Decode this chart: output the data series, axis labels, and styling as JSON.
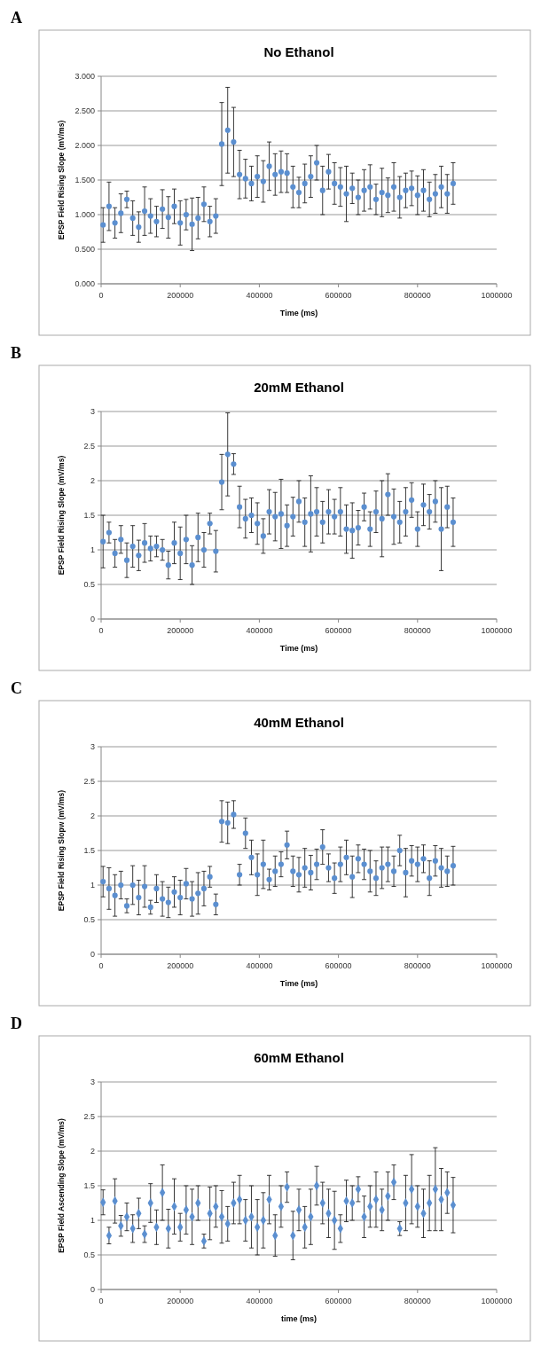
{
  "chart_data": [
    {
      "type": "scatter",
      "title": "No Ethanol",
      "xlabel": "Time (ms)",
      "ylabel": "EPSP Field Rising Slope (mV/ms)",
      "annotations": [
        "A"
      ],
      "color": "#5b8fd0",
      "marker": "circle",
      "grid": "y",
      "xlim": [
        0,
        1000000
      ],
      "xticks": [
        0,
        200000,
        400000,
        600000,
        800000,
        1000000
      ],
      "ylim": [
        0,
        3
      ],
      "yticks": [
        {
          "value": 0,
          "label": "0.000"
        },
        {
          "value": 0.5,
          "label": "0.500"
        },
        {
          "value": 1,
          "label": "1.000"
        },
        {
          "value": 1.5,
          "label": "1.500"
        },
        {
          "value": 2,
          "label": "2.000"
        },
        {
          "value": 2.5,
          "label": "2.500"
        },
        {
          "value": 3,
          "label": "3.000"
        }
      ],
      "x": [
        5000,
        20000,
        35000,
        50000,
        65000,
        80000,
        95000,
        110000,
        125000,
        140000,
        155000,
        170000,
        185000,
        200000,
        215000,
        230000,
        245000,
        260000,
        275000,
        290000,
        305000,
        320000,
        335000,
        350000,
        365000,
        380000,
        395000,
        410000,
        425000,
        440000,
        455000,
        470000,
        485000,
        500000,
        515000,
        530000,
        545000,
        560000,
        575000,
        590000,
        605000,
        620000,
        635000,
        650000,
        665000,
        680000,
        695000,
        710000,
        725000,
        740000,
        755000,
        770000,
        785000,
        800000,
        815000,
        830000,
        845000,
        860000,
        875000,
        890000
      ],
      "values": [
        0.85,
        1.12,
        0.88,
        1.02,
        1.22,
        0.95,
        0.82,
        1.05,
        0.98,
        0.9,
        1.08,
        0.96,
        1.12,
        0.88,
        1.0,
        0.86,
        0.95,
        1.15,
        0.9,
        0.98,
        2.02,
        2.22,
        2.05,
        1.58,
        1.52,
        1.45,
        1.55,
        1.48,
        1.7,
        1.58,
        1.62,
        1.6,
        1.4,
        1.32,
        1.45,
        1.55,
        1.75,
        1.35,
        1.62,
        1.45,
        1.4,
        1.3,
        1.38,
        1.25,
        1.35,
        1.4,
        1.22,
        1.32,
        1.28,
        1.4,
        1.25,
        1.35,
        1.38,
        1.28,
        1.35,
        1.22,
        1.3,
        1.4,
        1.3,
        1.45
      ],
      "errors": [
        0.25,
        0.35,
        0.22,
        0.28,
        0.12,
        0.25,
        0.22,
        0.35,
        0.25,
        0.22,
        0.28,
        0.3,
        0.25,
        0.32,
        0.22,
        0.38,
        0.3,
        0.25,
        0.22,
        0.25,
        0.6,
        0.62,
        0.5,
        0.35,
        0.28,
        0.25,
        0.3,
        0.3,
        0.35,
        0.3,
        0.3,
        0.28,
        0.3,
        0.22,
        0.28,
        0.3,
        0.25,
        0.35,
        0.25,
        0.3,
        0.28,
        0.4,
        0.22,
        0.25,
        0.3,
        0.32,
        0.22,
        0.35,
        0.25,
        0.35,
        0.3,
        0.25,
        0.25,
        0.28,
        0.3,
        0.25,
        0.28,
        0.3,
        0.28,
        0.3
      ]
    },
    {
      "type": "scatter",
      "title": "20mM Ethanol",
      "xlabel": "Time (ms)",
      "ylabel": "EPSP Field Rising Slope (mV/ms)",
      "annotations": [
        "B"
      ],
      "color": "#5b8fd0",
      "marker": "circle",
      "grid": "y",
      "xlim": [
        0,
        1000000
      ],
      "xticks": [
        0,
        200000,
        400000,
        600000,
        800000,
        1000000
      ],
      "ylim": [
        0,
        3
      ],
      "yticks": [
        0,
        0.5,
        1,
        1.5,
        2,
        2.5,
        3
      ],
      "x": [
        5000,
        20000,
        35000,
        50000,
        65000,
        80000,
        95000,
        110000,
        125000,
        140000,
        155000,
        170000,
        185000,
        200000,
        215000,
        230000,
        245000,
        260000,
        275000,
        290000,
        305000,
        320000,
        335000,
        350000,
        365000,
        380000,
        395000,
        410000,
        425000,
        440000,
        455000,
        470000,
        485000,
        500000,
        515000,
        530000,
        545000,
        560000,
        575000,
        590000,
        605000,
        620000,
        635000,
        650000,
        665000,
        680000,
        695000,
        710000,
        725000,
        740000,
        755000,
        770000,
        785000,
        800000,
        815000,
        830000,
        845000,
        860000,
        875000,
        890000
      ],
      "values": [
        1.12,
        1.25,
        0.95,
        1.15,
        0.85,
        1.05,
        0.92,
        1.1,
        1.02,
        1.05,
        1.0,
        0.78,
        1.1,
        0.95,
        1.15,
        0.78,
        1.18,
        1.0,
        1.38,
        0.98,
        1.98,
        2.38,
        2.24,
        1.62,
        1.45,
        1.5,
        1.38,
        1.2,
        1.55,
        1.48,
        1.52,
        1.35,
        1.48,
        1.7,
        1.4,
        1.52,
        1.55,
        1.4,
        1.55,
        1.48,
        1.55,
        1.3,
        1.28,
        1.32,
        1.62,
        1.3,
        1.55,
        1.45,
        1.8,
        1.48,
        1.4,
        1.55,
        1.72,
        1.3,
        1.65,
        1.55,
        1.7,
        1.3,
        1.62,
        1.4
      ],
      "errors": [
        0.38,
        0.15,
        0.2,
        0.2,
        0.25,
        0.3,
        0.22,
        0.28,
        0.18,
        0.15,
        0.15,
        0.2,
        0.3,
        0.38,
        0.35,
        0.28,
        0.35,
        0.25,
        0.15,
        0.3,
        0.4,
        0.6,
        0.15,
        0.3,
        0.28,
        0.25,
        0.3,
        0.25,
        0.32,
        0.35,
        0.5,
        0.3,
        0.28,
        0.3,
        0.35,
        0.55,
        0.35,
        0.3,
        0.32,
        0.25,
        0.35,
        0.35,
        0.4,
        0.25,
        0.2,
        0.25,
        0.3,
        0.55,
        0.3,
        0.4,
        0.3,
        0.35,
        0.25,
        0.25,
        0.3,
        0.25,
        0.3,
        0.6,
        0.3,
        0.35
      ]
    },
    {
      "type": "scatter",
      "title": "40mM Ethanol",
      "xlabel": "Time (ms)",
      "ylabel": "EPSP Field Rising Slopw (mV/ms)",
      "annotations": [
        "C"
      ],
      "color": "#5b8fd0",
      "marker": "circle",
      "grid": "y",
      "xlim": [
        0,
        1000000
      ],
      "xticks": [
        0,
        200000,
        400000,
        600000,
        800000,
        1000000
      ],
      "ylim": [
        0,
        3
      ],
      "yticks": [
        0,
        0.5,
        1,
        1.5,
        2,
        2.5,
        3
      ],
      "x": [
        5000,
        20000,
        35000,
        50000,
        65000,
        80000,
        95000,
        110000,
        125000,
        140000,
        155000,
        170000,
        185000,
        200000,
        215000,
        230000,
        245000,
        260000,
        275000,
        290000,
        305000,
        320000,
        335000,
        350000,
        365000,
        380000,
        395000,
        410000,
        425000,
        440000,
        455000,
        470000,
        485000,
        500000,
        515000,
        530000,
        545000,
        560000,
        575000,
        590000,
        605000,
        620000,
        635000,
        650000,
        665000,
        680000,
        695000,
        710000,
        725000,
        740000,
        755000,
        770000,
        785000,
        800000,
        815000,
        830000,
        845000,
        860000,
        875000,
        890000
      ],
      "values": [
        1.05,
        0.95,
        0.85,
        1.0,
        0.7,
        1.0,
        0.82,
        0.98,
        0.68,
        0.95,
        0.8,
        0.75,
        0.9,
        0.82,
        1.02,
        0.8,
        0.88,
        0.95,
        1.12,
        0.72,
        1.92,
        1.9,
        2.02,
        1.15,
        1.75,
        1.4,
        1.15,
        1.3,
        1.08,
        1.2,
        1.3,
        1.58,
        1.2,
        1.15,
        1.25,
        1.18,
        1.3,
        1.55,
        1.25,
        1.1,
        1.3,
        1.4,
        1.12,
        1.38,
        1.3,
        1.2,
        1.1,
        1.25,
        1.3,
        1.2,
        1.5,
        1.18,
        1.35,
        1.3,
        1.38,
        1.1,
        1.35,
        1.25,
        1.2,
        1.28
      ],
      "errors": [
        0.22,
        0.3,
        0.3,
        0.2,
        0.1,
        0.28,
        0.25,
        0.3,
        0.1,
        0.2,
        0.25,
        0.22,
        0.22,
        0.25,
        0.22,
        0.25,
        0.3,
        0.25,
        0.15,
        0.15,
        0.3,
        0.3,
        0.2,
        0.15,
        0.22,
        0.25,
        0.3,
        0.35,
        0.15,
        0.22,
        0.18,
        0.2,
        0.22,
        0.25,
        0.28,
        0.25,
        0.22,
        0.25,
        0.2,
        0.22,
        0.25,
        0.25,
        0.3,
        0.2,
        0.22,
        0.3,
        0.25,
        0.3,
        0.25,
        0.22,
        0.22,
        0.35,
        0.22,
        0.25,
        0.2,
        0.25,
        0.22,
        0.28,
        0.22,
        0.28
      ]
    },
    {
      "type": "scatter",
      "title": "60mM Ethanol",
      "xlabel": "time (ms)",
      "ylabel": "EPSP Field Ascending Slope (mV/ms)",
      "annotations": [
        "D"
      ],
      "color": "#5b8fd0",
      "marker": "diamond",
      "grid": "y",
      "xlim": [
        0,
        1000000
      ],
      "xticks": [
        0,
        200000,
        400000,
        600000,
        800000,
        1000000
      ],
      "ylim": [
        0,
        3
      ],
      "yticks": [
        0,
        0.5,
        1,
        1.5,
        2,
        2.5,
        3
      ],
      "x": [
        5000,
        20000,
        35000,
        50000,
        65000,
        80000,
        95000,
        110000,
        125000,
        140000,
        155000,
        170000,
        185000,
        200000,
        215000,
        230000,
        245000,
        260000,
        275000,
        290000,
        305000,
        320000,
        335000,
        350000,
        365000,
        380000,
        395000,
        410000,
        425000,
        440000,
        455000,
        470000,
        485000,
        500000,
        515000,
        530000,
        545000,
        560000,
        575000,
        590000,
        605000,
        620000,
        635000,
        650000,
        665000,
        680000,
        695000,
        710000,
        725000,
        740000,
        755000,
        770000,
        785000,
        800000,
        815000,
        830000,
        845000,
        860000,
        875000,
        890000
      ],
      "values": [
        1.26,
        0.78,
        1.28,
        0.92,
        1.05,
        0.88,
        1.1,
        0.8,
        1.25,
        0.9,
        1.4,
        0.88,
        1.2,
        0.9,
        1.15,
        1.05,
        1.25,
        0.7,
        1.1,
        1.2,
        1.05,
        0.95,
        1.25,
        1.3,
        1.0,
        1.05,
        0.9,
        1.0,
        1.3,
        0.78,
        1.2,
        1.48,
        0.78,
        1.15,
        0.9,
        1.05,
        1.5,
        1.25,
        1.1,
        1.0,
        0.88,
        1.28,
        1.25,
        1.45,
        1.05,
        1.2,
        1.3,
        1.15,
        1.35,
        1.55,
        0.88,
        1.25,
        1.45,
        1.2,
        1.1,
        1.25,
        1.45,
        1.3,
        1.4,
        1.22
      ],
      "errors": [
        0.18,
        0.12,
        0.32,
        0.15,
        0.2,
        0.2,
        0.22,
        0.12,
        0.28,
        0.25,
        0.4,
        0.28,
        0.4,
        0.2,
        0.35,
        0.4,
        0.25,
        0.1,
        0.38,
        0.3,
        0.38,
        0.25,
        0.3,
        0.35,
        0.3,
        0.45,
        0.4,
        0.4,
        0.35,
        0.3,
        0.3,
        0.22,
        0.35,
        0.3,
        0.3,
        0.4,
        0.28,
        0.3,
        0.35,
        0.42,
        0.2,
        0.3,
        0.25,
        0.18,
        0.3,
        0.3,
        0.4,
        0.3,
        0.35,
        0.25,
        0.1,
        0.4,
        0.5,
        0.3,
        0.35,
        0.4,
        0.6,
        0.45,
        0.3,
        0.4
      ]
    }
  ]
}
